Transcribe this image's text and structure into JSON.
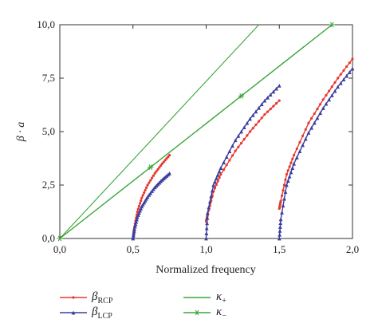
{
  "chart_data": {
    "type": "line",
    "xlabel": "Normalized frequency",
    "ylabel_main": "β · a",
    "xlim": [
      0.0,
      2.0
    ],
    "ylim": [
      0.0,
      10.0
    ],
    "xticks": [
      0.0,
      0.5,
      1.0,
      1.5,
      2.0
    ],
    "xtick_labels": [
      "0,0",
      "0,5",
      "1,0",
      "1,5",
      "2,0"
    ],
    "yticks": [
      0.0,
      2.5,
      5.0,
      7.5,
      10.0
    ],
    "ytick_labels": [
      "0,0",
      "2,5",
      "5,0",
      "7,5",
      "10,0"
    ],
    "grid": false,
    "legend_placement": "bottom",
    "series": [
      {
        "key": "rcp",
        "name": "β",
        "subscript": "RCP",
        "color": "#e8382f",
        "marker": "small-dot",
        "segments": [
          {
            "x": [
              0.5,
              0.51,
              0.53,
              0.56,
              0.6,
              0.65,
              0.7,
              0.75
            ],
            "y": [
              0.0,
              0.55,
              1.25,
              1.9,
              2.5,
              3.05,
              3.5,
              3.9
            ]
          },
          {
            "x": [
              1.0,
              1.01,
              1.05,
              1.1,
              1.2,
              1.3,
              1.4,
              1.5
            ],
            "y": [
              0.8,
              1.1,
              2.2,
              3.0,
              4.1,
              5.0,
              5.8,
              6.45
            ]
          },
          {
            "x": [
              1.5,
              1.51,
              1.55,
              1.6,
              1.7,
              1.8,
              1.9,
              2.0
            ],
            "y": [
              1.4,
              1.75,
              3.0,
              3.9,
              5.4,
              6.5,
              7.5,
              8.4
            ]
          }
        ]
      },
      {
        "key": "lcp",
        "name": "β",
        "subscript": "LCP",
        "color": "#3b3f9c",
        "marker": "triangle",
        "segments": [
          {
            "x": [
              0.5,
              0.51,
              0.53,
              0.56,
              0.6,
              0.65,
              0.7,
              0.75
            ],
            "y": [
              0.0,
              0.45,
              1.0,
              1.5,
              1.95,
              2.4,
              2.75,
              3.05
            ]
          },
          {
            "x": [
              1.0,
              1.01,
              1.05,
              1.1,
              1.2,
              1.3,
              1.4,
              1.5
            ],
            "y": [
              0.0,
              1.2,
              2.5,
              3.3,
              4.6,
              5.6,
              6.45,
              7.15
            ]
          },
          {
            "x": [
              1.5,
              1.51,
              1.55,
              1.6,
              1.7,
              1.8,
              1.9,
              2.0
            ],
            "y": [
              0.0,
              0.9,
              2.5,
              3.5,
              4.95,
              6.1,
              7.1,
              7.95
            ]
          }
        ]
      },
      {
        "key": "kplus",
        "name": "κ",
        "subscript": "+",
        "color": "#3aa53a",
        "marker": "none",
        "segments": [
          {
            "x": [
              0.0,
              1.36
            ],
            "y": [
              0.0,
              10.0
            ]
          }
        ]
      },
      {
        "key": "kminus",
        "name": "κ",
        "subscript": "−",
        "color": "#3aa53a",
        "marker": "star",
        "segments": [
          {
            "x": [
              0.0,
              1.86
            ],
            "y": [
              0.0,
              10.0
            ]
          }
        ]
      }
    ]
  },
  "legend": {
    "rcp_name": "β",
    "rcp_sub": "RCP",
    "lcp_name": "β",
    "lcp_sub": "LCP",
    "kplus_name": "κ",
    "kplus_sub": "+",
    "kminus_name": "κ",
    "kminus_sub": "−"
  }
}
